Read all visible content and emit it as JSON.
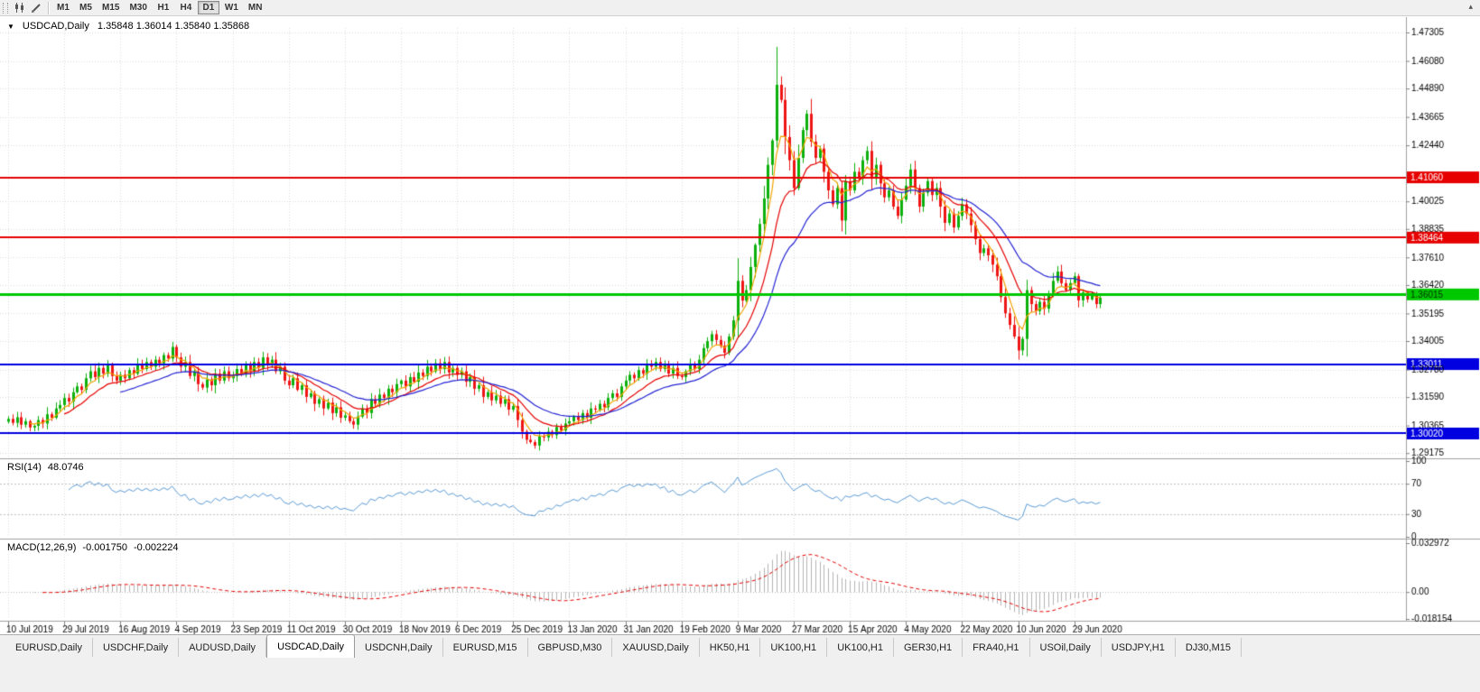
{
  "toolbar": {
    "timeframes": [
      {
        "label": "M1",
        "active": false
      },
      {
        "label": "M5",
        "active": false
      },
      {
        "label": "M15",
        "active": false
      },
      {
        "label": "M30",
        "active": false
      },
      {
        "label": "H1",
        "active": false
      },
      {
        "label": "H4",
        "active": false
      },
      {
        "label": "D1",
        "active": true
      },
      {
        "label": "W1",
        "active": false
      },
      {
        "label": "MN",
        "active": false
      }
    ]
  },
  "chart": {
    "title": "USDCAD,Daily",
    "ohlc": "1.35848 1.36014 1.35840 1.35868"
  },
  "chart_data": {
    "type": "candlestick",
    "symbol": "USDCAD",
    "timeframe": "Daily",
    "current_bar": {
      "open": 1.35848,
      "high": 1.36014,
      "low": 1.3584,
      "close": 1.35868
    },
    "x_labels": [
      "10 Jul 2019",
      "29 Jul 2019",
      "16 Aug 2019",
      "4 Sep 2019",
      "23 Sep 2019",
      "11 Oct 2019",
      "30 Oct 2019",
      "18 Nov 2019",
      "6 Dec 2019",
      "25 Dec 2019",
      "13 Jan 2020",
      "31 Jan 2020",
      "19 Feb 2020",
      "9 Mar 2020",
      "27 Mar 2020",
      "15 Apr 2020",
      "4 May 2020",
      "22 May 2020",
      "10 Jun 2020",
      "29 Jun 2020"
    ],
    "bars_per_label": 13,
    "price_range": [
      1.2895,
      1.475
    ],
    "price_axis": [
      {
        "v": 1.47305
      },
      {
        "v": 1.4608
      },
      {
        "v": 1.4489
      },
      {
        "v": 1.43665
      },
      {
        "v": 1.4244
      },
      {
        "v": 1.4106,
        "badge": "#e60000"
      },
      {
        "v": 1.40025
      },
      {
        "v": 1.38835
      },
      {
        "v": 1.38464,
        "badge": "#e60000"
      },
      {
        "v": 1.3761
      },
      {
        "v": 1.3642
      },
      {
        "v": 1.36015,
        "badge": "#00c800",
        "badge_text": "#002b00"
      },
      {
        "v": 1.35195
      },
      {
        "v": 1.34005
      },
      {
        "v": 1.33011,
        "badge": "#0000e0"
      },
      {
        "v": 1.3278
      },
      {
        "v": 1.3159
      },
      {
        "v": 1.30365
      },
      {
        "v": 1.3002,
        "badge": "#0000e0"
      },
      {
        "v": 1.29175
      }
    ],
    "closes": [
      1.3065,
      1.3048,
      1.3072,
      1.304,
      1.3055,
      1.3028,
      1.3035,
      1.306,
      1.3045,
      1.3085,
      1.307,
      1.311,
      1.3125,
      1.3155,
      1.314,
      1.318,
      1.3205,
      1.319,
      1.324,
      1.327,
      1.3245,
      1.3285,
      1.326,
      1.3295,
      1.325,
      1.323,
      1.3255,
      1.324,
      1.3275,
      1.326,
      1.33,
      1.328,
      1.331,
      1.329,
      1.332,
      1.3305,
      1.334,
      1.3325,
      1.3375,
      1.333,
      1.329,
      1.331,
      1.325,
      1.327,
      1.3215,
      1.32,
      1.3235,
      1.321,
      1.326,
      1.323,
      1.327,
      1.324,
      1.325,
      1.328,
      1.326,
      1.33,
      1.327,
      1.331,
      1.3285,
      1.333,
      1.33,
      1.332,
      1.327,
      1.329,
      1.323,
      1.321,
      1.324,
      1.319,
      1.321,
      1.316,
      1.3175,
      1.313,
      1.315,
      1.311,
      1.3135,
      1.309,
      1.3115,
      1.307,
      1.308,
      1.3055,
      1.304,
      1.3075,
      1.311,
      1.309,
      1.315,
      1.313,
      1.317,
      1.3155,
      1.3195,
      1.318,
      1.3215,
      1.323,
      1.3205,
      1.3245,
      1.3225,
      1.3265,
      1.325,
      1.329,
      1.327,
      1.3305,
      1.328,
      1.331,
      1.3265,
      1.3285,
      1.3255,
      1.327,
      1.3225,
      1.3245,
      1.3195,
      1.321,
      1.316,
      1.318,
      1.3145,
      1.3165,
      1.313,
      1.315,
      1.3105,
      1.312,
      1.306,
      1.301,
      1.2975,
      1.2965,
      1.295,
      1.299,
      1.2985,
      1.301,
      1.2995,
      1.303,
      1.3015,
      1.3045,
      1.3055,
      1.3075,
      1.306,
      1.309,
      1.307,
      1.311,
      1.3105,
      1.313,
      1.3115,
      1.3155,
      1.3175,
      1.316,
      1.3205,
      1.323,
      1.3255,
      1.324,
      1.3275,
      1.326,
      1.33,
      1.329,
      1.331,
      1.328,
      1.33,
      1.326,
      1.3285,
      1.325,
      1.3245,
      1.327,
      1.33,
      1.328,
      1.332,
      1.337,
      1.34,
      1.343,
      1.3405,
      1.338,
      1.335,
      1.342,
      1.349,
      1.366,
      1.3575,
      1.362,
      1.372,
      1.3815,
      1.3905,
      1.4015,
      1.416,
      1.4265,
      1.4505,
      1.444,
      1.428,
      1.418,
      1.406,
      1.419,
      1.431,
      1.438,
      1.426,
      1.419,
      1.423,
      1.413,
      1.405,
      1.399,
      1.406,
      1.392,
      1.409,
      1.405,
      1.413,
      1.41,
      1.418,
      1.422,
      1.41,
      1.416,
      1.408,
      1.402,
      1.405,
      1.398,
      1.394,
      1.401,
      1.407,
      1.414,
      1.406,
      1.398,
      1.404,
      1.409,
      1.403,
      1.406,
      1.398,
      1.391,
      1.395,
      1.389,
      1.394,
      1.399,
      1.395,
      1.39,
      1.384,
      1.378,
      1.38,
      1.377,
      1.373,
      1.368,
      1.359,
      1.352,
      1.347,
      1.342,
      1.336,
      1.341,
      1.362,
      1.356,
      1.353,
      1.357,
      1.354,
      1.36,
      1.366,
      1.37,
      1.365,
      1.362,
      1.365,
      1.368,
      1.3576,
      1.361,
      1.358,
      1.36,
      1.356,
      1.3587
    ],
    "wick_overrides": [
      {
        "i": 122,
        "low": 1.2948
      },
      {
        "i": 169,
        "high": 1.3758
      },
      {
        "i": 178,
        "high": 1.4669
      },
      {
        "i": 234,
        "low": 1.332
      },
      {
        "i": 243,
        "high": 1.3715
      }
    ],
    "levels": [
      {
        "value": 1.4106,
        "color": "#e60000",
        "width": 2
      },
      {
        "value": 1.38464,
        "color": "#e60000",
        "width": 2
      },
      {
        "value": 1.36015,
        "color": "#00c800",
        "width": 3
      },
      {
        "value": 1.33011,
        "color": "#0000e0",
        "width": 2
      },
      {
        "value": 1.3002,
        "color": "#0000e0",
        "width": 2
      }
    ],
    "moving_averages": [
      {
        "period": 5,
        "color": "#f0a500"
      },
      {
        "period": 13,
        "color": "#e60000"
      },
      {
        "period": 26,
        "color": "#2323d4"
      }
    ],
    "candle_up_color": "#0cb00c",
    "candle_down_color": "#ee1515",
    "grid_color": "#dcdcdc",
    "indicators": {
      "rsi": {
        "label": "RSI(14)",
        "period": 14,
        "current": "48.0746",
        "line_color": "#5b9bd5",
        "axis": [
          {
            "text": "100",
            "v": 100
          },
          {
            "text": "70",
            "v": 70
          },
          {
            "text": "30",
            "v": 30
          },
          {
            "text": "0",
            "v": 0
          }
        ],
        "guide_levels": [
          70,
          30
        ]
      },
      "macd": {
        "label": "MACD(12,26,9)",
        "fast": 12,
        "slow": 26,
        "signal": 9,
        "current_main": "-0.001750",
        "current_signal": "-0.002224",
        "axis_max": 0.032972,
        "axis_min": -0.018154,
        "axis_labels": [
          {
            "text": "0.032972",
            "v": 0.032972
          },
          {
            "text": "0.00",
            "v": 0
          },
          {
            "text": "-0.018154",
            "v": -0.018154
          }
        ],
        "histogram_color": "#b4b4b4",
        "signal_color": "#e60000"
      }
    }
  },
  "tabs": [
    {
      "label": "EURUSD,Daily",
      "active": false
    },
    {
      "label": "USDCHF,Daily",
      "active": false
    },
    {
      "label": "AUDUSD,Daily",
      "active": false
    },
    {
      "label": "USDCAD,Daily",
      "active": true
    },
    {
      "label": "USDCNH,Daily",
      "active": false
    },
    {
      "label": "EURUSD,M15",
      "active": false
    },
    {
      "label": "GBPUSD,M30",
      "active": false
    },
    {
      "label": "XAUUSD,Daily",
      "active": false
    },
    {
      "label": "HK50,H1",
      "active": false
    },
    {
      "label": "UK100,H1",
      "active": false
    },
    {
      "label": "UK100,H1",
      "active": false
    },
    {
      "label": "GER30,H1",
      "active": false
    },
    {
      "label": "FRA40,H1",
      "active": false
    },
    {
      "label": "USOil,Daily",
      "active": false
    },
    {
      "label": "USDJPY,H1",
      "active": false
    },
    {
      "label": "DJ30,M15",
      "active": false
    }
  ]
}
